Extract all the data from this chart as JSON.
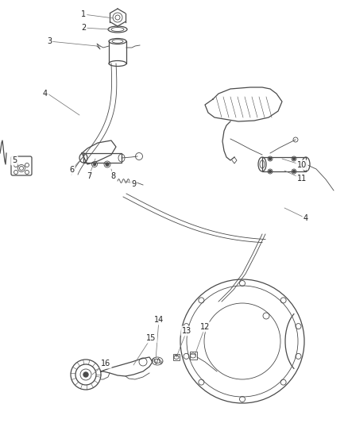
{
  "bg_color": "#ffffff",
  "line_color": "#4a4a4a",
  "label_color": "#222222",
  "label_fontsize": 7,
  "lw_thin": 0.6,
  "lw_med": 0.9,
  "lw_thick": 1.3
}
